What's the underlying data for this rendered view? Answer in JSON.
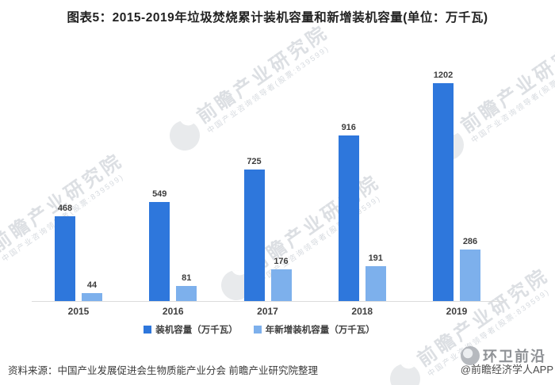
{
  "chart_data": {
    "type": "bar",
    "title": "图表5：2015-2019年垃圾焚烧累计装机容量和新增装机容量(单位：万千瓦)",
    "unit": "万千瓦",
    "categories": [
      "2015",
      "2016",
      "2017",
      "2018",
      "2019"
    ],
    "series": [
      {
        "name": "装机容量（万千瓦）",
        "values": [
          468,
          549,
          725,
          916,
          1202
        ],
        "color": "#2e77dc"
      },
      {
        "name": "年新增装机容量（万千瓦）",
        "values": [
          44,
          81,
          176,
          191,
          286
        ],
        "color": "#7db0ec"
      }
    ],
    "ylim": [
      0,
      1400
    ],
    "grid": false,
    "y_axis_visible": false,
    "value_labels": true,
    "legend_position": "bottom"
  },
  "watermark": {
    "brand": "前瞻产业研究院",
    "tagline": "中国产业咨询领导者(股票:839599)"
  },
  "footer": {
    "source": "资料来源：中国产业发展促进会生物质能产业分会 前瞻产业研究院整理",
    "channel": "环卫前沿",
    "credit": "@前瞻经济学人APP"
  },
  "colors": {
    "series_primary": "#2e77dc",
    "series_secondary": "#7db0ec",
    "axis_line": "#dcdcdc",
    "label_text": "#3d3d3d"
  }
}
